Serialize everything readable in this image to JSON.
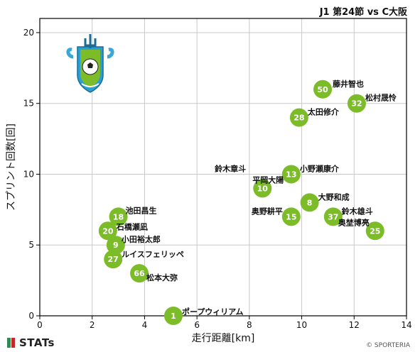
{
  "header": {
    "title": "J1 第24節 vs C大阪"
  },
  "footer": {
    "brand": "STATs",
    "copyright": "© SPORTERIA"
  },
  "logo": {
    "icon": "shonan-bellmare-crest-icon"
  },
  "colors": {
    "point": "#7cbc29",
    "grid": "#c9c9c9",
    "axis": "#000000"
  },
  "chart_data": {
    "type": "scatter",
    "title": "J1 第24節 vs C大阪",
    "xlabel": "走行距離[km]",
    "ylabel": "スプリント回数[回]",
    "xlim": [
      0,
      14
    ],
    "ylim": [
      0,
      21
    ],
    "xticks": [
      0,
      2,
      4,
      6,
      8,
      10,
      12,
      14
    ],
    "yticks": [
      0,
      5,
      10,
      15,
      20
    ],
    "grid": true,
    "points": [
      {
        "num": "50",
        "name": "藤井智也",
        "x": 10.8,
        "y": 16
      },
      {
        "num": "32",
        "name": "松村晟怜",
        "x": 12.1,
        "y": 15
      },
      {
        "num": "28",
        "name": "太田修介",
        "x": 9.9,
        "y": 14
      },
      {
        "num": "13",
        "name": "小野瀬康介",
        "x": 9.6,
        "y": 10
      },
      {
        "num": "10",
        "name": "平岡大陽",
        "x": 8.5,
        "y": 9
      },
      {
        "num": "",
        "name": "鈴木章斗",
        "x": 9.5,
        "y": 10
      },
      {
        "num": "8",
        "name": "大野和成",
        "x": 10.3,
        "y": 8
      },
      {
        "num": "15",
        "name": "奥野耕平",
        "x": 9.6,
        "y": 7
      },
      {
        "num": "37",
        "name": "鈴木雄斗",
        "x": 11.2,
        "y": 7
      },
      {
        "num": "25",
        "name": "奥埜博亮",
        "x": 12.8,
        "y": 6
      },
      {
        "num": "18",
        "name": "池田昌生",
        "x": 3.0,
        "y": 7
      },
      {
        "num": "20",
        "name": "石橋瀬凪",
        "x": 2.6,
        "y": 6
      },
      {
        "num": "9",
        "name": "小田裕太郎",
        "x": 2.9,
        "y": 5
      },
      {
        "num": "27",
        "name": "ルイスフェリッペ",
        "x": 2.8,
        "y": 4
      },
      {
        "num": "66",
        "name": "松本大弥",
        "x": 3.8,
        "y": 3
      },
      {
        "num": "1",
        "name": "ポープウィリアム",
        "x": 5.1,
        "y": 0
      }
    ]
  }
}
